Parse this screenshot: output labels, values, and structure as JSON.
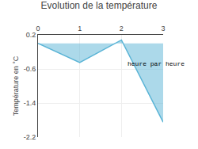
{
  "chart_data": {
    "type": "area",
    "title": "Evolution de la température",
    "y_label": "Température en °C",
    "x": [
      0,
      1,
      2,
      3
    ],
    "values": [
      0.0,
      -0.45,
      0.08,
      -1.85
    ],
    "color": "#5ab4d6",
    "xlim": [
      0,
      3
    ],
    "ylim": [
      -2.2,
      0.2
    ],
    "xticks": [
      0,
      1,
      2,
      3
    ],
    "yticks": [
      0.2,
      -0.6,
      -1.4,
      -2.2
    ],
    "grid": true,
    "annotations": [
      {
        "text": "heure par heure",
        "x": 2.1,
        "y": -0.48
      }
    ]
  }
}
